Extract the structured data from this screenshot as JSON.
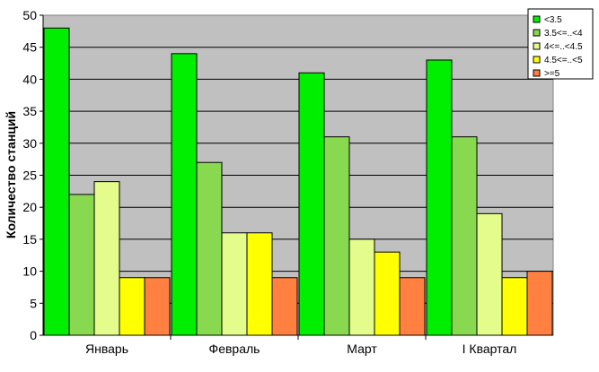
{
  "chart_data": {
    "type": "bar",
    "title": "",
    "xlabel": "",
    "ylabel": "Количество станций",
    "ylim": [
      0,
      50
    ],
    "yticks": [
      0,
      5,
      10,
      15,
      20,
      25,
      30,
      35,
      40,
      45,
      50
    ],
    "grid": true,
    "legend_position": "top-right",
    "categories": [
      "Январь",
      "Февраль",
      "Март",
      "I Квартал"
    ],
    "series": [
      {
        "name": "<3.5",
        "color": "#00ee00",
        "values": [
          48,
          44,
          41,
          43
        ]
      },
      {
        "name": "3.5<=..<4",
        "color": "#88d850",
        "values": [
          22,
          27,
          31,
          31
        ]
      },
      {
        "name": "4<=..<4.5",
        "color": "#e4fc8c",
        "values": [
          24,
          16,
          15,
          19
        ]
      },
      {
        "name": "4.5<=..<5",
        "color": "#ffff00",
        "values": [
          9,
          16,
          13,
          9
        ]
      },
      {
        "name": ">=5",
        "color": "#ff8040",
        "values": [
          9,
          9,
          9,
          10
        ]
      }
    ],
    "plot_background": "#c0c0c0"
  }
}
